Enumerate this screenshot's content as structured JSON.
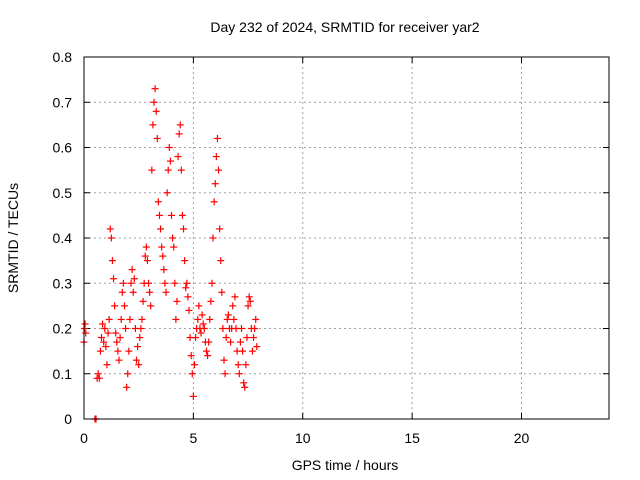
{
  "chart_data": {
    "type": "scatter",
    "title": "Day 232 of 2024, SRMTID for receiver yar2",
    "xlabel": "GPS time / hours",
    "ylabel": "SRMTID / TECUs",
    "xlim": [
      0,
      24
    ],
    "ylim": [
      0,
      0.8
    ],
    "xticks": [
      0,
      5,
      10,
      15,
      20
    ],
    "yticks": [
      0,
      0.1,
      0.2,
      0.3,
      0.4,
      0.5,
      0.6,
      0.7,
      0.8
    ],
    "xtick_labels": [
      "0",
      "5",
      "10",
      "15",
      "20"
    ],
    "ytick_labels": [
      "0",
      "0.1",
      "0.2",
      "0.3",
      "0.4",
      "0.5",
      "0.6",
      "0.7",
      "0.8"
    ],
    "grid": true,
    "marker": "+",
    "color": "#ff0000",
    "series": [
      {
        "name": "yar2",
        "points": [
          [
            0.0,
            0.17
          ],
          [
            0.02,
            0.2
          ],
          [
            0.05,
            0.21
          ],
          [
            0.08,
            0.19
          ],
          [
            0.5,
            0.0
          ],
          [
            0.55,
            0.0
          ],
          [
            0.6,
            0.09
          ],
          [
            0.65,
            0.1
          ],
          [
            0.7,
            0.09
          ],
          [
            0.75,
            0.15
          ],
          [
            0.8,
            0.18
          ],
          [
            0.85,
            0.21
          ],
          [
            0.9,
            0.17
          ],
          [
            0.95,
            0.2
          ],
          [
            1.0,
            0.16
          ],
          [
            1.05,
            0.12
          ],
          [
            1.1,
            0.19
          ],
          [
            1.15,
            0.22
          ],
          [
            1.2,
            0.42
          ],
          [
            1.25,
            0.4
          ],
          [
            1.3,
            0.35
          ],
          [
            1.35,
            0.31
          ],
          [
            1.4,
            0.25
          ],
          [
            1.45,
            0.19
          ],
          [
            1.5,
            0.17
          ],
          [
            1.55,
            0.15
          ],
          [
            1.6,
            0.13
          ],
          [
            1.65,
            0.18
          ],
          [
            1.7,
            0.22
          ],
          [
            1.75,
            0.28
          ],
          [
            1.8,
            0.3
          ],
          [
            1.85,
            0.25
          ],
          [
            1.9,
            0.2
          ],
          [
            1.95,
            0.07
          ],
          [
            2.0,
            0.1
          ],
          [
            2.05,
            0.15
          ],
          [
            2.1,
            0.22
          ],
          [
            2.15,
            0.3
          ],
          [
            2.2,
            0.33
          ],
          [
            2.25,
            0.28
          ],
          [
            2.3,
            0.31
          ],
          [
            2.35,
            0.2
          ],
          [
            2.4,
            0.13
          ],
          [
            2.45,
            0.16
          ],
          [
            2.5,
            0.12
          ],
          [
            2.55,
            0.18
          ],
          [
            2.6,
            0.2
          ],
          [
            2.65,
            0.22
          ],
          [
            2.7,
            0.26
          ],
          [
            2.75,
            0.3
          ],
          [
            2.8,
            0.36
          ],
          [
            2.85,
            0.38
          ],
          [
            2.9,
            0.35
          ],
          [
            2.95,
            0.3
          ],
          [
            3.0,
            0.28
          ],
          [
            3.05,
            0.25
          ],
          [
            3.1,
            0.55
          ],
          [
            3.15,
            0.65
          ],
          [
            3.2,
            0.7
          ],
          [
            3.25,
            0.73
          ],
          [
            3.3,
            0.68
          ],
          [
            3.35,
            0.62
          ],
          [
            3.4,
            0.48
          ],
          [
            3.45,
            0.45
          ],
          [
            3.5,
            0.42
          ],
          [
            3.55,
            0.38
          ],
          [
            3.6,
            0.36
          ],
          [
            3.65,
            0.33
          ],
          [
            3.7,
            0.3
          ],
          [
            3.75,
            0.28
          ],
          [
            3.8,
            0.5
          ],
          [
            3.85,
            0.55
          ],
          [
            3.9,
            0.6
          ],
          [
            3.95,
            0.57
          ],
          [
            4.0,
            0.45
          ],
          [
            4.05,
            0.4
          ],
          [
            4.1,
            0.38
          ],
          [
            4.15,
            0.3
          ],
          [
            4.2,
            0.22
          ],
          [
            4.25,
            0.26
          ],
          [
            4.3,
            0.58
          ],
          [
            4.35,
            0.63
          ],
          [
            4.4,
            0.65
          ],
          [
            4.45,
            0.55
          ],
          [
            4.5,
            0.45
          ],
          [
            4.55,
            0.42
          ],
          [
            4.6,
            0.35
          ],
          [
            4.65,
            0.29
          ],
          [
            4.7,
            0.3
          ],
          [
            4.75,
            0.27
          ],
          [
            4.8,
            0.24
          ],
          [
            4.85,
            0.18
          ],
          [
            4.9,
            0.14
          ],
          [
            4.95,
            0.1
          ],
          [
            5.0,
            0.05
          ],
          [
            5.05,
            0.12
          ],
          [
            5.1,
            0.18
          ],
          [
            5.15,
            0.2
          ],
          [
            5.2,
            0.22
          ],
          [
            5.25,
            0.25
          ],
          [
            5.3,
            0.2
          ],
          [
            5.35,
            0.19
          ],
          [
            5.4,
            0.23
          ],
          [
            5.45,
            0.21
          ],
          [
            5.5,
            0.2
          ],
          [
            5.55,
            0.17
          ],
          [
            5.6,
            0.15
          ],
          [
            5.65,
            0.14
          ],
          [
            5.7,
            0.17
          ],
          [
            5.75,
            0.22
          ],
          [
            5.8,
            0.26
          ],
          [
            5.85,
            0.3
          ],
          [
            5.9,
            0.4
          ],
          [
            5.95,
            0.48
          ],
          [
            6.0,
            0.52
          ],
          [
            6.05,
            0.58
          ],
          [
            6.1,
            0.62
          ],
          [
            6.15,
            0.55
          ],
          [
            6.2,
            0.42
          ],
          [
            6.25,
            0.35
          ],
          [
            6.3,
            0.28
          ],
          [
            6.35,
            0.2
          ],
          [
            6.4,
            0.13
          ],
          [
            6.45,
            0.1
          ],
          [
            6.5,
            0.18
          ],
          [
            6.55,
            0.22
          ],
          [
            6.6,
            0.23
          ],
          [
            6.65,
            0.2
          ],
          [
            6.7,
            0.17
          ],
          [
            6.75,
            0.2
          ],
          [
            6.8,
            0.25
          ],
          [
            6.85,
            0.22
          ],
          [
            6.9,
            0.27
          ],
          [
            6.95,
            0.2
          ],
          [
            7.0,
            0.15
          ],
          [
            7.05,
            0.12
          ],
          [
            7.1,
            0.1
          ],
          [
            7.15,
            0.17
          ],
          [
            7.2,
            0.2
          ],
          [
            7.25,
            0.15
          ],
          [
            7.3,
            0.08
          ],
          [
            7.35,
            0.07
          ],
          [
            7.4,
            0.12
          ],
          [
            7.45,
            0.18
          ],
          [
            7.5,
            0.25
          ],
          [
            7.55,
            0.27
          ],
          [
            7.6,
            0.26
          ],
          [
            7.65,
            0.2
          ],
          [
            7.7,
            0.15
          ],
          [
            7.75,
            0.18
          ],
          [
            7.8,
            0.2
          ],
          [
            7.85,
            0.22
          ],
          [
            7.9,
            0.16
          ]
        ]
      }
    ]
  }
}
